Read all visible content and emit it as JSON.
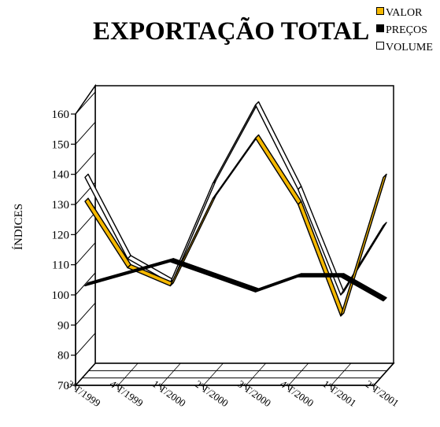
{
  "chart_data": {
    "type": "line",
    "title": "EXPORTAÇÃO TOTAL",
    "xlabel": "",
    "ylabel": "ÍNDICES",
    "categories": [
      "3ºT/1999",
      "4ºT/1999",
      "1ºT/2000",
      "2ºT/2000",
      "3ºT/2000",
      "4ºT/2000",
      "1ºT/2001",
      "2ºT/2001"
    ],
    "ylim": [
      70,
      160
    ],
    "yticks": [
      70,
      80,
      90,
      100,
      110,
      120,
      130,
      140,
      150,
      160
    ],
    "legend_position": "top-right",
    "series": [
      {
        "name": "VALOR",
        "color": "#f5b800",
        "values": [
          131,
          109,
          103,
          132,
          152,
          130,
          93,
          139
        ]
      },
      {
        "name": "PREÇOS",
        "color": "#000000",
        "values": [
          103,
          107,
          111,
          106,
          101,
          106,
          106,
          98
        ]
      },
      {
        "name": "VOLUME",
        "color": "#ffffff",
        "values": [
          139,
          112,
          104,
          137,
          163,
          135,
          100,
          123
        ]
      }
    ]
  }
}
